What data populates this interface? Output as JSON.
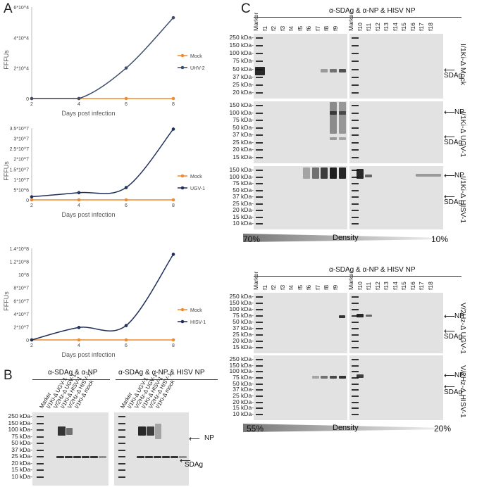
{
  "panels": {
    "A": "A",
    "B": "B",
    "C": "C"
  },
  "chart_data": [
    {
      "type": "line",
      "x": [
        2,
        4,
        6,
        8
      ],
      "xlabel": "Days post infection",
      "ylabel": "FFFUs",
      "yticks": [
        "0",
        "2*10^4",
        "4*10^4",
        "6*10^4"
      ],
      "ylim": [
        0,
        60000
      ],
      "series": [
        {
          "name": "Mock",
          "values": [
            0,
            0,
            0,
            0
          ],
          "color": "#f08a2c"
        },
        {
          "name": "UHV-2",
          "values": [
            0,
            0,
            20000,
            53000
          ],
          "color": "#3f4e6b"
        }
      ],
      "legend": "right"
    },
    {
      "type": "line",
      "x": [
        2,
        4,
        6,
        8
      ],
      "xlabel": "Days post infection",
      "ylabel": "FFFUs",
      "yticks": [
        "0",
        "5*10^6",
        "1*10^7",
        "1.5*10^7",
        "2*10^7",
        "2.5*10^7",
        "3*10^7",
        "3.5*10^7"
      ],
      "ylim": [
        0,
        35000000
      ],
      "series": [
        {
          "name": "Mock",
          "values": [
            0,
            0,
            0,
            0
          ],
          "color": "#f08a2c"
        },
        {
          "name": "UGV-1",
          "values": [
            1500000,
            3500000,
            6000000,
            34500000
          ],
          "color": "#1f2f5a"
        }
      ],
      "legend": "right"
    },
    {
      "type": "line",
      "x": [
        2,
        4,
        6,
        8
      ],
      "xlabel": "Days post infection",
      "ylabel": "FFFUs",
      "yticks": [
        "0",
        "2*10^7",
        "4*10^7",
        "6*10^7",
        "8*10^7",
        "10^8",
        "1.2*10^8",
        "1.4*10^8"
      ],
      "ylim": [
        0,
        140000000
      ],
      "series": [
        {
          "name": "Mock",
          "values": [
            0,
            0,
            0,
            0
          ],
          "color": "#f08a2c"
        },
        {
          "name": "HISV-1",
          "values": [
            0,
            19000000,
            22000000,
            131000000
          ],
          "color": "#1f2f5a"
        }
      ],
      "legend": "right"
    }
  ],
  "panelB": {
    "header_left": "α-SDAg & α-NP",
    "header_right": "α-SDAg & α-NP & HISV NP",
    "kda": [
      "250 kDa-",
      "150 kDa-",
      "100 kDa-",
      "75 kDa-",
      "50 kDa-",
      "37 kDa-",
      "25 kDa-",
      "20 kDa-",
      "15 kDa-",
      "10 kDa-"
    ],
    "lanes": [
      "Marker",
      "I/1Ki-Δ UGV-1",
      "V/2Hz-Δ UGV-1",
      "I/1Ki-Δ HISV-1",
      "V/2Hz-Δ HISV-1",
      "I/1Ki-Δ mock"
    ],
    "np": "NP",
    "sdag": "SDAg"
  },
  "panelC": {
    "header_top": "α-SDAg & α-NP & HISV NP",
    "header_bottom": "α-SDAg & α-NP & HISV NP",
    "lanes_left": [
      "Marker",
      "f1",
      "f2",
      "f3",
      "f4",
      "f5",
      "f6",
      "f7",
      "f8",
      "f9"
    ],
    "lanes_right": [
      "Marker",
      "f10",
      "f11",
      "f12",
      "f13",
      "f14",
      "f15",
      "f16",
      "f17",
      "f18"
    ],
    "kda_top1": [
      "250 kDa-",
      "150 kDa-",
      "100 kDa-",
      "75 kDa-",
      "50 kDa-",
      "37 kDa-",
      "25 kDa-",
      "20 kDa-"
    ],
    "kda_top2": [
      "150 kDa-",
      "100 kDa-",
      "75 kDa-",
      "50 kDa-",
      "37 kDa-",
      "25 kDa-",
      "20 kDa-",
      "15 kDa-"
    ],
    "kda_top3": [
      "150 kDa-",
      "100 kDa-",
      "75 kDa-",
      "50 kDa-",
      "37 kDa-",
      "25 kDa-",
      "20 kDa-",
      "15 kDa-",
      "10 kDa-"
    ],
    "kda_bot1": [
      "250 kDa-",
      "150 kDa-",
      "100 kDa-",
      "75 kDa-",
      "50 kDa-",
      "37 kDa-",
      "25 kDa-",
      "20 kDa-",
      "15 kDa-"
    ],
    "kda_bot2": [
      "250 kDa-",
      "150 kDa-",
      "100 kDa-",
      "75 kDa-",
      "50 kDa-",
      "37 kDa-",
      "25 kDa-",
      "20 kDa-",
      "15 kDa-",
      "10 kDa-"
    ],
    "side_top": [
      "I/1Ki-Δ Mock",
      "I/1Ki-Δ UGV-1",
      "I/1Ki-Δ HISV-1"
    ],
    "side_bottom": [
      "V/2Hz-Δ UGV-1",
      "V/2Hz-Δ HISV-1"
    ],
    "np": "NP",
    "sdag": "SDAg",
    "density": "Density",
    "top_left_pct": "70%",
    "top_right_pct": "10%",
    "bot_left_pct": "55%",
    "bot_right_pct": "20%"
  }
}
